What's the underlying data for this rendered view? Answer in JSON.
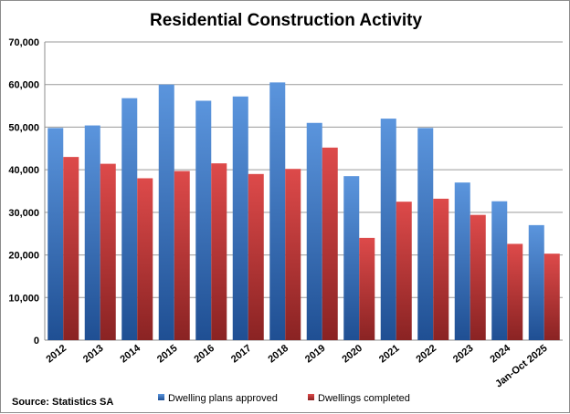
{
  "chart_data": {
    "type": "bar",
    "title": "Residential Construction Activity",
    "categories": [
      "2012",
      "2013",
      "2014",
      "2015",
      "2016",
      "2017",
      "2018",
      "2019",
      "2020",
      "2021",
      "2022",
      "2023",
      "2024",
      "Jan-Oct 2025"
    ],
    "series": [
      {
        "name": "Dwelling plans approved",
        "color": "#3a78c9",
        "values": [
          49800,
          50400,
          56800,
          60000,
          56200,
          57200,
          60500,
          51000,
          38500,
          52000,
          49800,
          37000,
          32600,
          27000
        ]
      },
      {
        "name": "Dwellings completed",
        "color": "#c43a3a",
        "values": [
          43000,
          41400,
          38000,
          39700,
          41500,
          39000,
          40200,
          45200,
          24000,
          32500,
          33200,
          29400,
          22600,
          20300
        ]
      }
    ],
    "ylim": [
      0,
      70000
    ],
    "yticks": [
      "0",
      "10,000",
      "20,000",
      "30,000",
      "40,000",
      "50,000",
      "60,000",
      "70,000"
    ],
    "ytick_values": [
      0,
      10000,
      20000,
      30000,
      40000,
      50000,
      60000,
      70000
    ],
    "grid": true,
    "legend": "bottom",
    "source": "Source: Statistics SA"
  }
}
